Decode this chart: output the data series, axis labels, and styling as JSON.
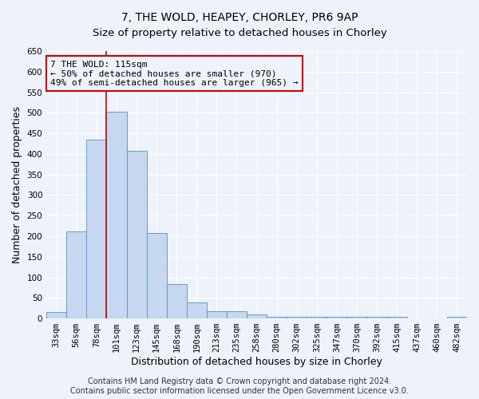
{
  "title": "7, THE WOLD, HEAPEY, CHORLEY, PR6 9AP",
  "subtitle": "Size of property relative to detached houses in Chorley",
  "xlabel": "Distribution of detached houses by size in Chorley",
  "ylabel": "Number of detached properties",
  "footer_line1": "Contains HM Land Registry data © Crown copyright and database right 2024.",
  "footer_line2": "Contains public sector information licensed under the Open Government Licence v3.0.",
  "categories": [
    "33sqm",
    "56sqm",
    "78sqm",
    "101sqm",
    "123sqm",
    "145sqm",
    "168sqm",
    "190sqm",
    "213sqm",
    "235sqm",
    "258sqm",
    "280sqm",
    "302sqm",
    "325sqm",
    "347sqm",
    "370sqm",
    "392sqm",
    "415sqm",
    "437sqm",
    "460sqm",
    "482sqm"
  ],
  "values": [
    15,
    212,
    435,
    503,
    407,
    207,
    84,
    38,
    18,
    18,
    10,
    5,
    4,
    4,
    4,
    4,
    4,
    4,
    1,
    1,
    4
  ],
  "bar_color": "#c5d8f0",
  "bar_edge_color": "#5a8fc0",
  "annotation_line1": "7 THE WOLD: 115sqm",
  "annotation_line2": "← 50% of detached houses are smaller (970)",
  "annotation_line3": "49% of semi-detached houses are larger (965) →",
  "vline_x_index": 3.0,
  "vline_color": "#cc0000",
  "box_color": "#cc0000",
  "ylim": [
    0,
    650
  ],
  "yticks": [
    0,
    50,
    100,
    150,
    200,
    250,
    300,
    350,
    400,
    450,
    500,
    550,
    600,
    650
  ],
  "background_color": "#eef2fa",
  "grid_color": "#ffffff",
  "title_fontsize": 10,
  "subtitle_fontsize": 9.5,
  "axis_fontsize": 9,
  "tick_fontsize": 7.5,
  "annotation_fontsize": 8,
  "footer_fontsize": 7
}
